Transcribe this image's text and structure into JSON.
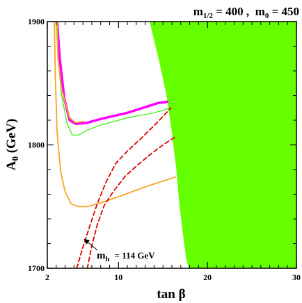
{
  "chart_data": {
    "type": "line",
    "title_parts": {
      "m_half_main": "m",
      "m_half_sub": "1/2",
      "m_half_value": " = 400 ,  ",
      "m0_main": "m",
      "m0_sub": "0",
      "m0_value": " = 450"
    },
    "xlabel": "tan β",
    "ylabel_main": "A",
    "ylabel_sub": "0",
    "ylabel_unit": " (GeV)",
    "xlim": [
      2,
      30
    ],
    "ylim": [
      1700,
      1900
    ],
    "x_ticks": [
      2,
      10,
      20,
      30
    ],
    "x_tick_labels": [
      "2",
      "10",
      "20",
      "30"
    ],
    "y_ticks": [
      1700,
      1800,
      1900
    ],
    "y_tick_labels": [
      "1700",
      "1800",
      "1900"
    ],
    "grid": false,
    "annotation": {
      "main": "m",
      "sub": "h",
      "value": "= 114 GeV",
      "x": 6.7,
      "y": 1723
    },
    "colors": {
      "excluded_region": "#66ff00",
      "magenta": "#ff00ff",
      "green_line": "#33ee00",
      "orange": "#f5a623",
      "red_dashed": "#dd0000"
    },
    "excluded_region": {
      "boundary": [
        {
          "x": 13.5,
          "y": 1900
        },
        {
          "x": 14.5,
          "y": 1870
        },
        {
          "x": 15.4,
          "y": 1840
        },
        {
          "x": 16.0,
          "y": 1810
        },
        {
          "x": 16.5,
          "y": 1780
        },
        {
          "x": 16.8,
          "y": 1755
        },
        {
          "x": 17.2,
          "y": 1730
        },
        {
          "x": 17.6,
          "y": 1708
        },
        {
          "x": 17.9,
          "y": 1700
        }
      ]
    },
    "series": [
      {
        "style": "magenta-thick",
        "points": [
          [
            3.1,
            1900
          ],
          [
            3.4,
            1870
          ],
          [
            3.9,
            1838
          ],
          [
            4.5,
            1820
          ],
          [
            5.2,
            1817
          ],
          [
            6.5,
            1818
          ],
          [
            8,
            1821
          ],
          [
            11,
            1826
          ],
          [
            14.5,
            1834
          ],
          [
            15.5,
            1835
          ]
        ]
      },
      {
        "style": "green-thin",
        "points": [
          [
            3.0,
            1900
          ],
          [
            3.2,
            1870
          ],
          [
            3.6,
            1840
          ],
          [
            4.2,
            1818
          ],
          [
            4.8,
            1808
          ],
          [
            5.5,
            1808
          ],
          [
            6.5,
            1812
          ],
          [
            8,
            1816
          ],
          [
            11,
            1822
          ],
          [
            14,
            1826
          ],
          [
            15.9,
            1830
          ]
        ]
      },
      {
        "style": "orange",
        "points": [
          [
            2.8,
            1900
          ],
          [
            2.9,
            1855
          ],
          [
            3.1,
            1810
          ],
          [
            3.5,
            1778
          ],
          [
            4.0,
            1762
          ],
          [
            4.7,
            1752
          ],
          [
            5.5,
            1750
          ],
          [
            6.5,
            1750
          ],
          [
            8,
            1753
          ],
          [
            10,
            1758
          ],
          [
            13,
            1766
          ],
          [
            16.4,
            1774
          ]
        ]
      },
      {
        "style": "orange",
        "points": [
          [
            3.1,
            1900
          ],
          [
            3.2,
            1870
          ],
          [
            3.6,
            1845
          ],
          [
            4.5,
            1822
          ],
          [
            5.2,
            1818
          ],
          [
            6,
            1819
          ]
        ]
      },
      {
        "style": "red-dashed",
        "points": [
          [
            5.3,
            1700
          ],
          [
            6.0,
            1717
          ],
          [
            6.8,
            1735
          ],
          [
            7.6,
            1752
          ],
          [
            8.6,
            1770
          ],
          [
            9.7,
            1785
          ],
          [
            11,
            1795
          ],
          [
            12.5,
            1805
          ],
          [
            14.2,
            1817
          ],
          [
            15.9,
            1830
          ]
        ]
      },
      {
        "style": "red-dashed",
        "points": [
          [
            6.5,
            1700
          ],
          [
            7.0,
            1718
          ],
          [
            7.6,
            1735
          ],
          [
            8.4,
            1751
          ],
          [
            9.5,
            1763
          ],
          [
            10.8,
            1775
          ],
          [
            12.2,
            1784
          ],
          [
            13.7,
            1793
          ],
          [
            15.2,
            1801
          ],
          [
            16.3,
            1806
          ]
        ]
      }
    ]
  }
}
